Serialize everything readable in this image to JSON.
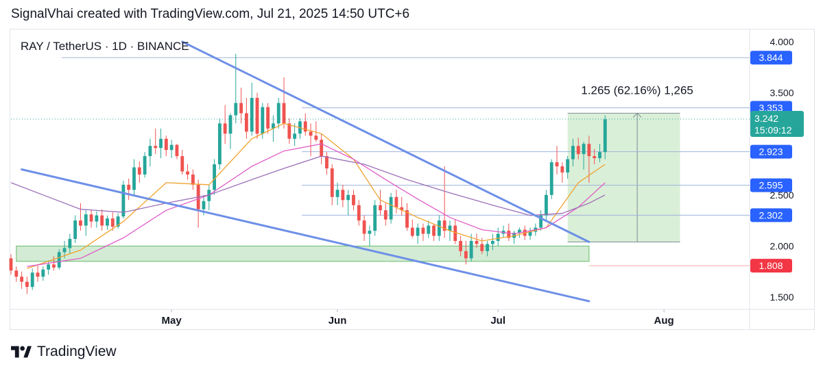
{
  "header": {
    "caption": "SignalVhai created with TradingView.com, Jul 21, 2025 14:50 UTC+6"
  },
  "symbol_line": "RAY / TetherUS · 1D · BINANCE",
  "footer": {
    "brand": "TradingView",
    "logo_icon": "tradingview-logo-icon"
  },
  "colors": {
    "up": "#26a69a",
    "down": "#ef5350",
    "trendline": "#6d8fe8",
    "zone_fill": "#c8e6c9",
    "zone_stroke": "#66bb6a",
    "ema_fast": "#f0a22e",
    "ema_mid": "#e05dc8",
    "ema_slow": "#9b6fb8",
    "hline": "#9db3dd",
    "tag_blue": "#2962ff",
    "tag_red": "#f23645",
    "tag_green": "#26a69a",
    "measure_fill": "#d3ecd0",
    "measure_line": "#7e8c93"
  },
  "chart_data": {
    "type": "candlestick",
    "title": "RAY / TetherUS · 1D · BINANCE",
    "xlabel": "",
    "ylabel": "",
    "ylim": [
      1.38,
      4.12
    ],
    "y_ticks": [
      "4.000",
      "3.500",
      "2.500",
      "2.000",
      "1.500"
    ],
    "x_ticks": [
      "May",
      "Jun",
      "Jul",
      "Aug"
    ],
    "x_tick_dates": [
      "2025-05-01",
      "2025-06-01",
      "2025-07-01",
      "2025-08-01"
    ],
    "date_range": [
      "2025-04-01",
      "2025-08-17"
    ],
    "candles_start": "2025-04-01",
    "candles": [
      [
        1.88,
        1.92,
        1.72,
        1.76
      ],
      [
        1.76,
        1.8,
        1.65,
        1.7
      ],
      [
        1.7,
        1.75,
        1.58,
        1.65
      ],
      [
        1.65,
        1.7,
        1.53,
        1.6
      ],
      [
        1.6,
        1.78,
        1.57,
        1.74
      ],
      [
        1.74,
        1.82,
        1.65,
        1.7
      ],
      [
        1.7,
        1.8,
        1.66,
        1.77
      ],
      [
        1.77,
        1.86,
        1.72,
        1.82
      ],
      [
        1.82,
        1.9,
        1.76,
        1.79
      ],
      [
        1.79,
        1.97,
        1.77,
        1.94
      ],
      [
        1.94,
        2.05,
        1.88,
        1.98
      ],
      [
        1.98,
        2.12,
        1.92,
        2.07
      ],
      [
        2.07,
        2.3,
        2.03,
        2.25
      ],
      [
        2.25,
        2.42,
        2.15,
        2.2
      ],
      [
        2.2,
        2.35,
        2.1,
        2.31
      ],
      [
        2.31,
        2.36,
        2.18,
        2.24
      ],
      [
        2.24,
        2.34,
        2.18,
        2.3
      ],
      [
        2.3,
        2.36,
        2.15,
        2.2
      ],
      [
        2.2,
        2.3,
        2.16,
        2.27
      ],
      [
        2.27,
        2.33,
        2.15,
        2.19
      ],
      [
        2.19,
        2.32,
        2.17,
        2.29
      ],
      [
        2.29,
        2.64,
        2.27,
        2.6
      ],
      [
        2.6,
        2.66,
        2.45,
        2.55
      ],
      [
        2.55,
        2.85,
        2.5,
        2.77
      ],
      [
        2.77,
        2.83,
        2.62,
        2.7
      ],
      [
        2.7,
        2.92,
        2.67,
        2.88
      ],
      [
        2.88,
        3.05,
        2.78,
        2.98
      ],
      [
        2.98,
        3.15,
        2.9,
        2.96
      ],
      [
        2.96,
        3.15,
        2.86,
        3.05
      ],
      [
        3.05,
        3.08,
        2.88,
        2.94
      ],
      [
        2.94,
        3.04,
        2.86,
        2.99
      ],
      [
        2.99,
        3.0,
        2.85,
        2.88
      ],
      [
        2.88,
        2.94,
        2.7,
        2.73
      ],
      [
        2.73,
        2.8,
        2.65,
        2.7
      ],
      [
        2.7,
        2.75,
        2.55,
        2.6
      ],
      [
        2.6,
        2.65,
        2.18,
        2.36
      ],
      [
        2.36,
        2.5,
        2.3,
        2.44
      ],
      [
        2.44,
        2.6,
        2.35,
        2.55
      ],
      [
        2.55,
        2.85,
        2.5,
        2.8
      ],
      [
        2.8,
        3.25,
        2.75,
        3.2
      ],
      [
        3.2,
        3.38,
        3.0,
        3.1
      ],
      [
        3.1,
        3.3,
        2.95,
        3.28
      ],
      [
        3.28,
        3.88,
        3.2,
        3.4
      ],
      [
        3.4,
        3.55,
        3.2,
        3.3
      ],
      [
        3.3,
        3.45,
        3.05,
        3.12
      ],
      [
        3.12,
        3.6,
        3.08,
        3.45
      ],
      [
        3.45,
        3.5,
        3.05,
        3.1
      ],
      [
        3.1,
        3.4,
        3.05,
        3.36
      ],
      [
        3.36,
        3.4,
        3.1,
        3.15
      ],
      [
        3.15,
        3.28,
        3.02,
        3.2
      ],
      [
        3.2,
        3.45,
        3.15,
        3.4
      ],
      [
        3.4,
        3.65,
        3.15,
        3.2
      ],
      [
        3.2,
        3.25,
        3.0,
        3.05
      ],
      [
        3.05,
        3.2,
        2.98,
        3.1
      ],
      [
        3.1,
        3.25,
        3.05,
        3.22
      ],
      [
        3.22,
        3.3,
        3.08,
        3.12
      ],
      [
        3.12,
        3.2,
        2.88,
        3.08
      ],
      [
        3.08,
        3.22,
        3.02,
        3.04
      ],
      [
        3.04,
        3.1,
        2.8,
        2.88
      ],
      [
        2.88,
        2.92,
        2.7,
        2.76
      ],
      [
        2.76,
        2.8,
        2.4,
        2.48
      ],
      [
        2.48,
        2.62,
        2.4,
        2.55
      ],
      [
        2.55,
        2.6,
        2.38,
        2.45
      ],
      [
        2.45,
        2.55,
        2.3,
        2.5
      ],
      [
        2.5,
        2.55,
        2.35,
        2.4
      ],
      [
        2.4,
        2.45,
        2.2,
        2.25
      ],
      [
        2.25,
        2.3,
        2.05,
        2.12
      ],
      [
        2.12,
        2.2,
        2.0,
        2.15
      ],
      [
        2.15,
        2.45,
        2.1,
        2.4
      ],
      [
        2.4,
        2.55,
        2.3,
        2.35
      ],
      [
        2.35,
        2.42,
        2.2,
        2.26
      ],
      [
        2.26,
        2.52,
        2.22,
        2.48
      ],
      [
        2.48,
        2.55,
        2.32,
        2.38
      ],
      [
        2.38,
        2.48,
        2.3,
        2.35
      ],
      [
        2.35,
        2.42,
        2.15,
        2.18
      ],
      [
        2.18,
        2.26,
        2.08,
        2.1
      ],
      [
        2.1,
        2.22,
        2.02,
        2.18
      ],
      [
        2.18,
        2.22,
        2.05,
        2.12
      ],
      [
        2.12,
        2.25,
        2.08,
        2.2
      ],
      [
        2.2,
        2.22,
        2.05,
        2.1
      ],
      [
        2.1,
        2.3,
        2.05,
        2.25
      ],
      [
        2.25,
        2.78,
        2.08,
        2.15
      ],
      [
        2.15,
        2.25,
        2.05,
        2.2
      ],
      [
        2.2,
        2.26,
        2.02,
        2.05
      ],
      [
        2.05,
        2.1,
        1.9,
        1.95
      ],
      [
        1.95,
        2.05,
        1.82,
        1.88
      ],
      [
        1.88,
        2.12,
        1.85,
        2.05
      ],
      [
        2.05,
        2.12,
        1.98,
        2.02
      ],
      [
        2.02,
        2.08,
        1.92,
        1.95
      ],
      [
        1.95,
        2.05,
        1.9,
        2.02
      ],
      [
        2.02,
        2.12,
        1.96,
        2.05
      ],
      [
        2.05,
        2.18,
        2.0,
        2.12
      ],
      [
        2.12,
        2.2,
        2.08,
        2.15
      ],
      [
        2.15,
        2.22,
        2.05,
        2.08
      ],
      [
        2.08,
        2.15,
        2.02,
        2.13
      ],
      [
        2.13,
        2.18,
        2.08,
        2.16
      ],
      [
        2.16,
        2.2,
        2.06,
        2.1
      ],
      [
        2.1,
        2.18,
        2.06,
        2.14
      ],
      [
        2.14,
        2.22,
        2.1,
        2.18
      ],
      [
        2.18,
        2.35,
        2.15,
        2.3
      ],
      [
        2.3,
        2.55,
        2.25,
        2.5
      ],
      [
        2.5,
        2.85,
        2.46,
        2.82
      ],
      [
        2.82,
        2.98,
        2.7,
        2.78
      ],
      [
        2.78,
        2.82,
        2.62,
        2.72
      ],
      [
        2.72,
        2.88,
        2.66,
        2.85
      ],
      [
        2.85,
        3.05,
        2.78,
        2.98
      ],
      [
        2.98,
        3.06,
        2.85,
        2.9
      ],
      [
        2.9,
        3.02,
        2.75,
        3.0
      ],
      [
        3.0,
        3.08,
        2.62,
        2.88
      ],
      [
        2.88,
        2.95,
        2.8,
        2.86
      ],
      [
        2.86,
        3.0,
        2.82,
        2.92
      ],
      [
        2.92,
        3.28,
        2.85,
        3.24
      ]
    ],
    "moving_averages": [
      {
        "color": "#f0a22e",
        "points": [
          [
            "2025-04-04",
            1.78
          ],
          [
            "2025-04-14",
            1.96
          ],
          [
            "2025-04-22",
            2.24
          ],
          [
            "2025-04-30",
            2.62
          ],
          [
            "2025-05-08",
            2.6
          ],
          [
            "2025-05-16",
            3.05
          ],
          [
            "2025-05-22",
            3.2
          ],
          [
            "2025-05-29",
            3.1
          ],
          [
            "2025-06-04",
            2.85
          ],
          [
            "2025-06-09",
            2.45
          ],
          [
            "2025-06-16",
            2.28
          ],
          [
            "2025-06-22",
            2.15
          ],
          [
            "2025-06-28",
            2.05
          ],
          [
            "2025-07-04",
            2.1
          ],
          [
            "2025-07-10",
            2.18
          ],
          [
            "2025-07-16",
            2.62
          ],
          [
            "2025-07-21",
            2.8
          ]
        ]
      },
      {
        "color": "#e05dc8",
        "points": [
          [
            "2025-04-04",
            1.8
          ],
          [
            "2025-04-14",
            1.88
          ],
          [
            "2025-04-22",
            2.08
          ],
          [
            "2025-04-30",
            2.35
          ],
          [
            "2025-05-08",
            2.5
          ],
          [
            "2025-05-16",
            2.78
          ],
          [
            "2025-05-22",
            2.93
          ],
          [
            "2025-05-29",
            3.0
          ],
          [
            "2025-06-04",
            2.85
          ],
          [
            "2025-06-10",
            2.65
          ],
          [
            "2025-06-16",
            2.46
          ],
          [
            "2025-06-22",
            2.28
          ],
          [
            "2025-06-28",
            2.16
          ],
          [
            "2025-07-04",
            2.12
          ],
          [
            "2025-07-10",
            2.18
          ],
          [
            "2025-07-16",
            2.38
          ],
          [
            "2025-07-21",
            2.62
          ]
        ]
      },
      {
        "color": "#9b6fb8",
        "points": [
          [
            "2025-04-01",
            2.62
          ],
          [
            "2025-04-08",
            2.48
          ],
          [
            "2025-04-14",
            2.36
          ],
          [
            "2025-04-22",
            2.33
          ],
          [
            "2025-04-30",
            2.42
          ],
          [
            "2025-05-08",
            2.5
          ],
          [
            "2025-05-16",
            2.65
          ],
          [
            "2025-05-22",
            2.76
          ],
          [
            "2025-05-29",
            2.88
          ],
          [
            "2025-06-06",
            2.8
          ],
          [
            "2025-06-14",
            2.65
          ],
          [
            "2025-06-22",
            2.52
          ],
          [
            "2025-06-30",
            2.4
          ],
          [
            "2025-07-07",
            2.3
          ],
          [
            "2025-07-13",
            2.32
          ],
          [
            "2025-07-18",
            2.42
          ],
          [
            "2025-07-21",
            2.5
          ]
        ]
      }
    ],
    "trendlines": [
      {
        "from": [
          "2025-05-03",
          4.0
        ],
        "to": [
          "2025-07-18",
          2.04
        ]
      },
      {
        "from": [
          "2025-04-03",
          2.75
        ],
        "to": [
          "2025-07-18",
          1.46
        ]
      }
    ],
    "support_zone": {
      "from": "2025-04-02",
      "to": "2025-07-18",
      "y": [
        1.85,
        2.0
      ]
    },
    "measure": {
      "from": "2025-07-14",
      "to": "2025-08-04",
      "y": [
        2.04,
        3.3
      ],
      "arrow_date": "2025-07-27",
      "label": "1.265 (62.16%) 1,265"
    },
    "price_levels": [
      {
        "value": 3.844,
        "label": "3.844",
        "tag": "blue"
      },
      {
        "value": 3.353,
        "label": "3.353",
        "tag": "blue"
      },
      {
        "value": 2.923,
        "label": "2.923",
        "tag": "blue"
      },
      {
        "value": 2.595,
        "label": "2.595",
        "tag": "blue"
      },
      {
        "value": 2.302,
        "label": "2.302",
        "tag": "blue"
      },
      {
        "value": 1.808,
        "label": "1.808",
        "tag": "red"
      }
    ],
    "current_price": {
      "value": 3.242,
      "label": "3.242",
      "countdown": "15:09:12"
    }
  }
}
